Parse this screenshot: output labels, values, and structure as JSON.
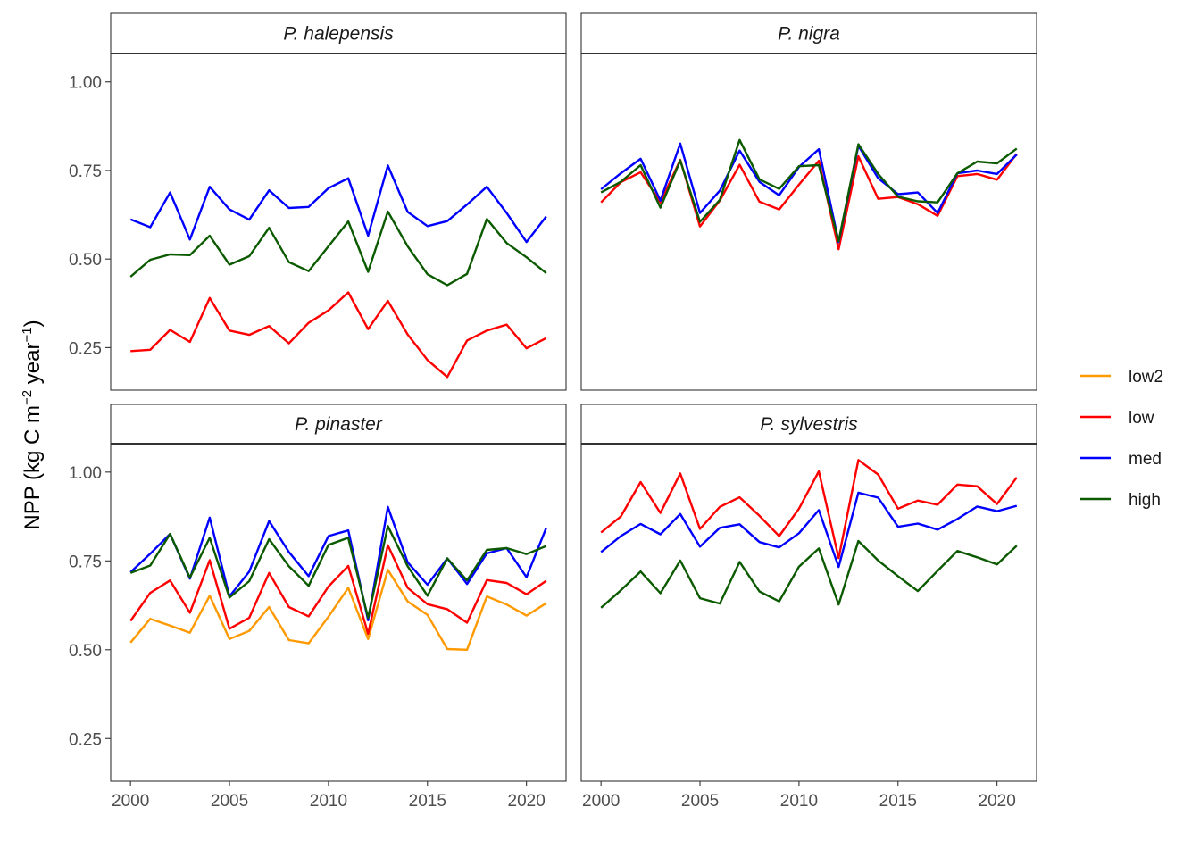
{
  "chart_data": {
    "type": "line",
    "ylabel_parts": [
      "NPP (kg C m",
      "−2",
      " year",
      "−1",
      ")"
    ],
    "ylim": [
      0.13,
      1.08
    ],
    "xlim": [
      1999.0,
      2022.0
    ],
    "x_ticks": [
      2000,
      2005,
      2010,
      2015,
      2020
    ],
    "x_tick_labels": [
      "2000",
      "2005",
      "2010",
      "2015",
      "2020"
    ],
    "y_ticks": [
      0.25,
      0.5,
      0.75,
      1.0
    ],
    "y_tick_labels": [
      "0.25",
      "0.50",
      "0.75",
      "1.00"
    ],
    "grid": false,
    "legend_position": "right",
    "legend": [
      {
        "name": "low2",
        "color": "#FF9900"
      },
      {
        "name": "low",
        "color": "#FF0000"
      },
      {
        "name": "med",
        "color": "#0000FF"
      },
      {
        "name": "high",
        "color": "#0B5A00"
      }
    ],
    "x": [
      2000,
      2001,
      2002,
      2003,
      2004,
      2005,
      2006,
      2007,
      2008,
      2009,
      2010,
      2011,
      2012,
      2013,
      2014,
      2015,
      2016,
      2017,
      2018,
      2019,
      2020,
      2021
    ],
    "panels": [
      {
        "title": "P. halepensis",
        "series": [
          {
            "name": "low",
            "values": [
              0.24,
              0.244,
              0.3,
              0.266,
              0.39,
              0.298,
              0.286,
              0.311,
              0.262,
              0.32,
              0.355,
              0.406,
              0.302,
              0.382,
              0.287,
              0.215,
              0.167,
              0.27,
              0.298,
              0.315,
              0.248,
              0.277
            ]
          },
          {
            "name": "med",
            "values": [
              0.612,
              0.59,
              0.688,
              0.555,
              0.704,
              0.64,
              0.611,
              0.694,
              0.644,
              0.647,
              0.7,
              0.728,
              0.566,
              0.764,
              0.633,
              0.593,
              0.607,
              0.654,
              0.704,
              0.63,
              0.548,
              0.62
            ]
          },
          {
            "name": "high",
            "values": [
              0.45,
              0.498,
              0.513,
              0.511,
              0.566,
              0.484,
              0.508,
              0.588,
              0.491,
              0.466,
              0.536,
              0.606,
              0.464,
              0.634,
              0.536,
              0.457,
              0.426,
              0.458,
              0.613,
              0.545,
              0.505,
              0.46
            ]
          }
        ]
      },
      {
        "title": "P. nigra",
        "series": [
          {
            "name": "low",
            "values": [
              0.66,
              0.717,
              0.745,
              0.66,
              0.78,
              0.592,
              0.665,
              0.766,
              0.662,
              0.64,
              0.71,
              0.777,
              0.528,
              0.79,
              0.67,
              0.675,
              0.655,
              0.622,
              0.734,
              0.74,
              0.724,
              0.797
            ]
          },
          {
            "name": "med",
            "values": [
              0.697,
              0.742,
              0.783,
              0.665,
              0.826,
              0.63,
              0.693,
              0.806,
              0.718,
              0.68,
              0.76,
              0.81,
              0.548,
              0.82,
              0.728,
              0.683,
              0.688,
              0.63,
              0.742,
              0.75,
              0.74,
              0.795
            ]
          },
          {
            "name": "high",
            "values": [
              0.688,
              0.718,
              0.765,
              0.645,
              0.778,
              0.605,
              0.667,
              0.836,
              0.725,
              0.698,
              0.762,
              0.765,
              0.55,
              0.824,
              0.74,
              0.676,
              0.663,
              0.66,
              0.742,
              0.775,
              0.77,
              0.812
            ]
          }
        ]
      },
      {
        "title": "P. pinaster",
        "series": [
          {
            "name": "low2",
            "values": [
              0.52,
              0.587,
              0.568,
              0.548,
              0.652,
              0.53,
              0.553,
              0.62,
              0.527,
              0.518,
              0.593,
              0.674,
              0.53,
              0.725,
              0.636,
              0.598,
              0.502,
              0.5,
              0.65,
              0.627,
              0.596,
              0.631
            ]
          },
          {
            "name": "low",
            "values": [
              0.581,
              0.66,
              0.695,
              0.604,
              0.752,
              0.559,
              0.59,
              0.716,
              0.62,
              0.594,
              0.678,
              0.736,
              0.545,
              0.794,
              0.674,
              0.628,
              0.614,
              0.576,
              0.696,
              0.688,
              0.656,
              0.694
            ]
          },
          {
            "name": "med",
            "values": [
              0.718,
              0.77,
              0.826,
              0.7,
              0.872,
              0.65,
              0.72,
              0.862,
              0.775,
              0.707,
              0.82,
              0.836,
              0.583,
              0.902,
              0.746,
              0.683,
              0.757,
              0.685,
              0.771,
              0.786,
              0.704,
              0.843
            ]
          },
          {
            "name": "high",
            "values": [
              0.716,
              0.737,
              0.826,
              0.703,
              0.815,
              0.647,
              0.693,
              0.811,
              0.735,
              0.68,
              0.795,
              0.815,
              0.59,
              0.848,
              0.735,
              0.652,
              0.757,
              0.695,
              0.781,
              0.786,
              0.769,
              0.792
            ]
          }
        ]
      },
      {
        "title": "P. sylvestris",
        "series": [
          {
            "name": "low",
            "values": [
              0.83,
              0.875,
              0.972,
              0.885,
              0.996,
              0.84,
              0.902,
              0.929,
              0.877,
              0.82,
              0.897,
              1.002,
              0.758,
              1.034,
              0.993,
              0.897,
              0.92,
              0.908,
              0.965,
              0.96,
              0.91,
              0.985
            ]
          },
          {
            "name": "med",
            "values": [
              0.775,
              0.82,
              0.854,
              0.825,
              0.882,
              0.79,
              0.843,
              0.853,
              0.803,
              0.788,
              0.828,
              0.893,
              0.733,
              0.942,
              0.928,
              0.846,
              0.855,
              0.838,
              0.868,
              0.903,
              0.89,
              0.905
            ]
          },
          {
            "name": "high",
            "values": [
              0.618,
              0.667,
              0.72,
              0.659,
              0.751,
              0.645,
              0.63,
              0.747,
              0.664,
              0.636,
              0.734,
              0.785,
              0.627,
              0.806,
              0.751,
              0.707,
              0.665,
              0.722,
              0.778,
              0.76,
              0.74,
              0.793
            ]
          }
        ]
      }
    ]
  }
}
